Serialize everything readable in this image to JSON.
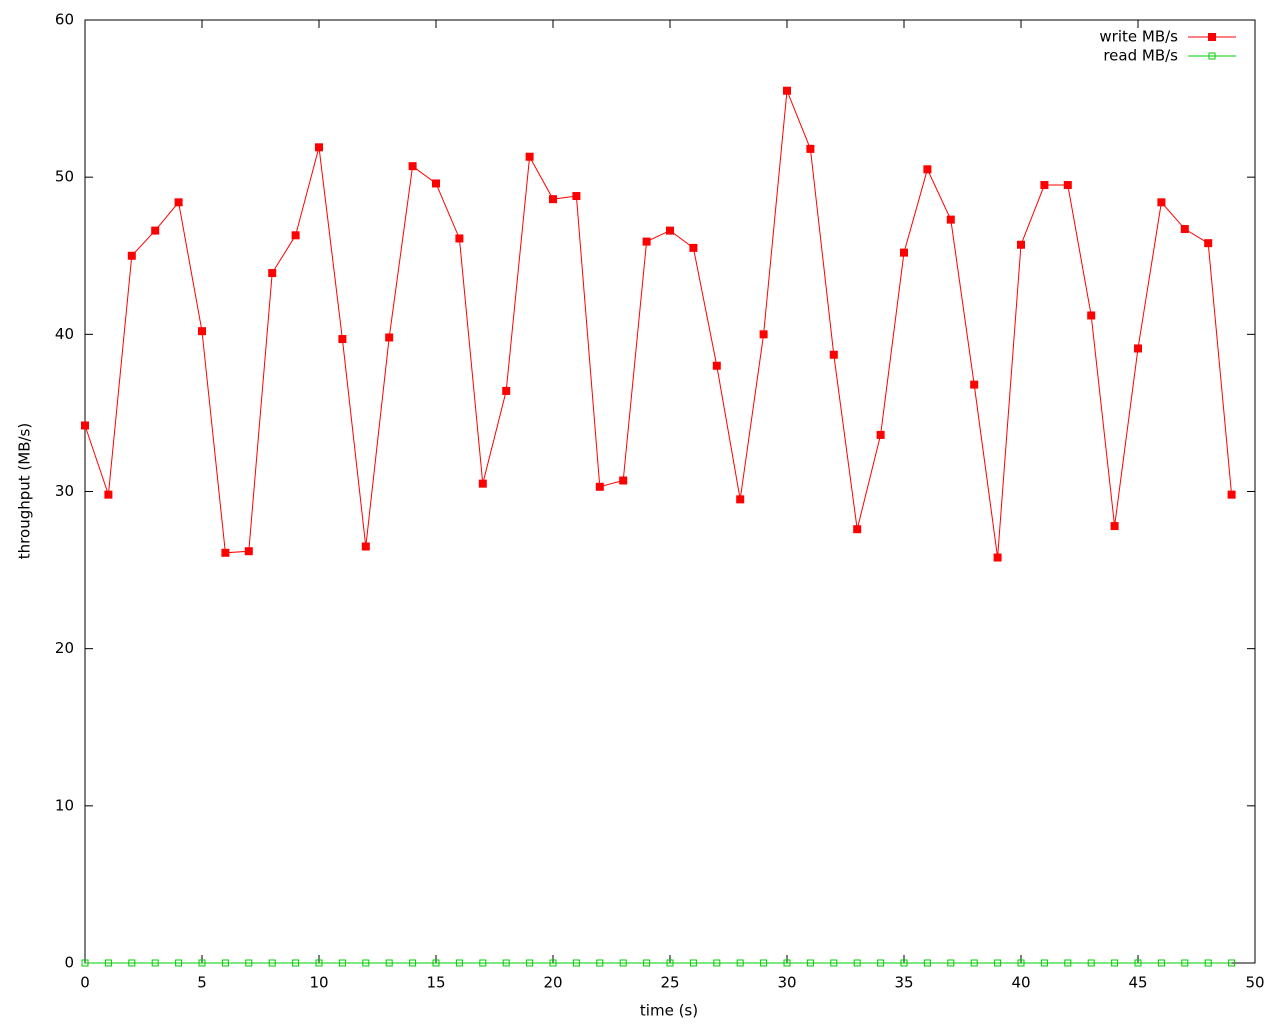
{
  "chart_data": {
    "type": "line",
    "xlabel": "time (s)",
    "ylabel": "throughput (MB/s)",
    "x": [
      0,
      1,
      2,
      3,
      4,
      5,
      6,
      7,
      8,
      9,
      10,
      11,
      12,
      13,
      14,
      15,
      16,
      17,
      18,
      19,
      20,
      21,
      22,
      23,
      24,
      25,
      26,
      27,
      28,
      29,
      30,
      31,
      32,
      33,
      34,
      35,
      36,
      37,
      38,
      39,
      40,
      41,
      42,
      43,
      44,
      45,
      46,
      47,
      48,
      49
    ],
    "series": [
      {
        "name": "write MB/s",
        "color": "#ff0000",
        "marker": "filled-square",
        "values": [
          34.2,
          29.8,
          45.0,
          46.6,
          48.4,
          40.2,
          26.1,
          26.2,
          43.9,
          46.3,
          51.9,
          39.7,
          26.5,
          39.8,
          50.7,
          49.6,
          46.1,
          30.5,
          36.4,
          51.3,
          48.6,
          48.8,
          30.3,
          30.7,
          45.9,
          46.6,
          45.5,
          38.0,
          29.5,
          40.0,
          55.5,
          51.8,
          38.7,
          27.6,
          33.6,
          45.2,
          50.5,
          47.3,
          36.8,
          25.8,
          45.7,
          49.5,
          49.5,
          41.2,
          27.8,
          39.1,
          48.4,
          46.7,
          45.8,
          29.8
        ]
      },
      {
        "name": "read MB/s",
        "color": "#00cc00",
        "marker": "open-square",
        "values": [
          0,
          0,
          0,
          0,
          0,
          0,
          0,
          0,
          0,
          0,
          0,
          0,
          0,
          0,
          0,
          0,
          0,
          0,
          0,
          0,
          0,
          0,
          0,
          0,
          0,
          0,
          0,
          0,
          0,
          0,
          0,
          0,
          0,
          0,
          0,
          0,
          0,
          0,
          0,
          0,
          0,
          0,
          0,
          0,
          0,
          0,
          0,
          0,
          0,
          0
        ]
      }
    ],
    "xlim": [
      0,
      50
    ],
    "xticks": [
      0,
      5,
      10,
      15,
      20,
      25,
      30,
      35,
      40,
      45,
      50
    ],
    "ylim": [
      0,
      60
    ],
    "yticks": [
      0,
      10,
      20,
      30,
      40,
      50,
      60
    ],
    "grid": false,
    "legend": "top-right"
  }
}
